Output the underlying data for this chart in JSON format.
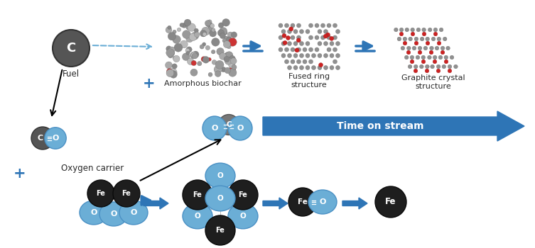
{
  "bg_color": "#ffffff",
  "blue_light": "#6baed6",
  "blue_arrow": "#2e75b6",
  "dark_iron": "#1e1e1e",
  "dark_gray_c": "#555555",
  "text_white": "#ffffff",
  "text_dark": "#2a2a2a",
  "label_fuel": "Fuel",
  "label_amorphous": "Amorphous biochar",
  "label_fused": "Fused ring\nstructure",
  "label_graphite": "Graphite crystal\nstructure",
  "label_oxygen_carrier": "Oxygen carrier",
  "label_time": "Time on stream",
  "figsize": [
    7.53,
    3.5
  ],
  "dpi": 100
}
